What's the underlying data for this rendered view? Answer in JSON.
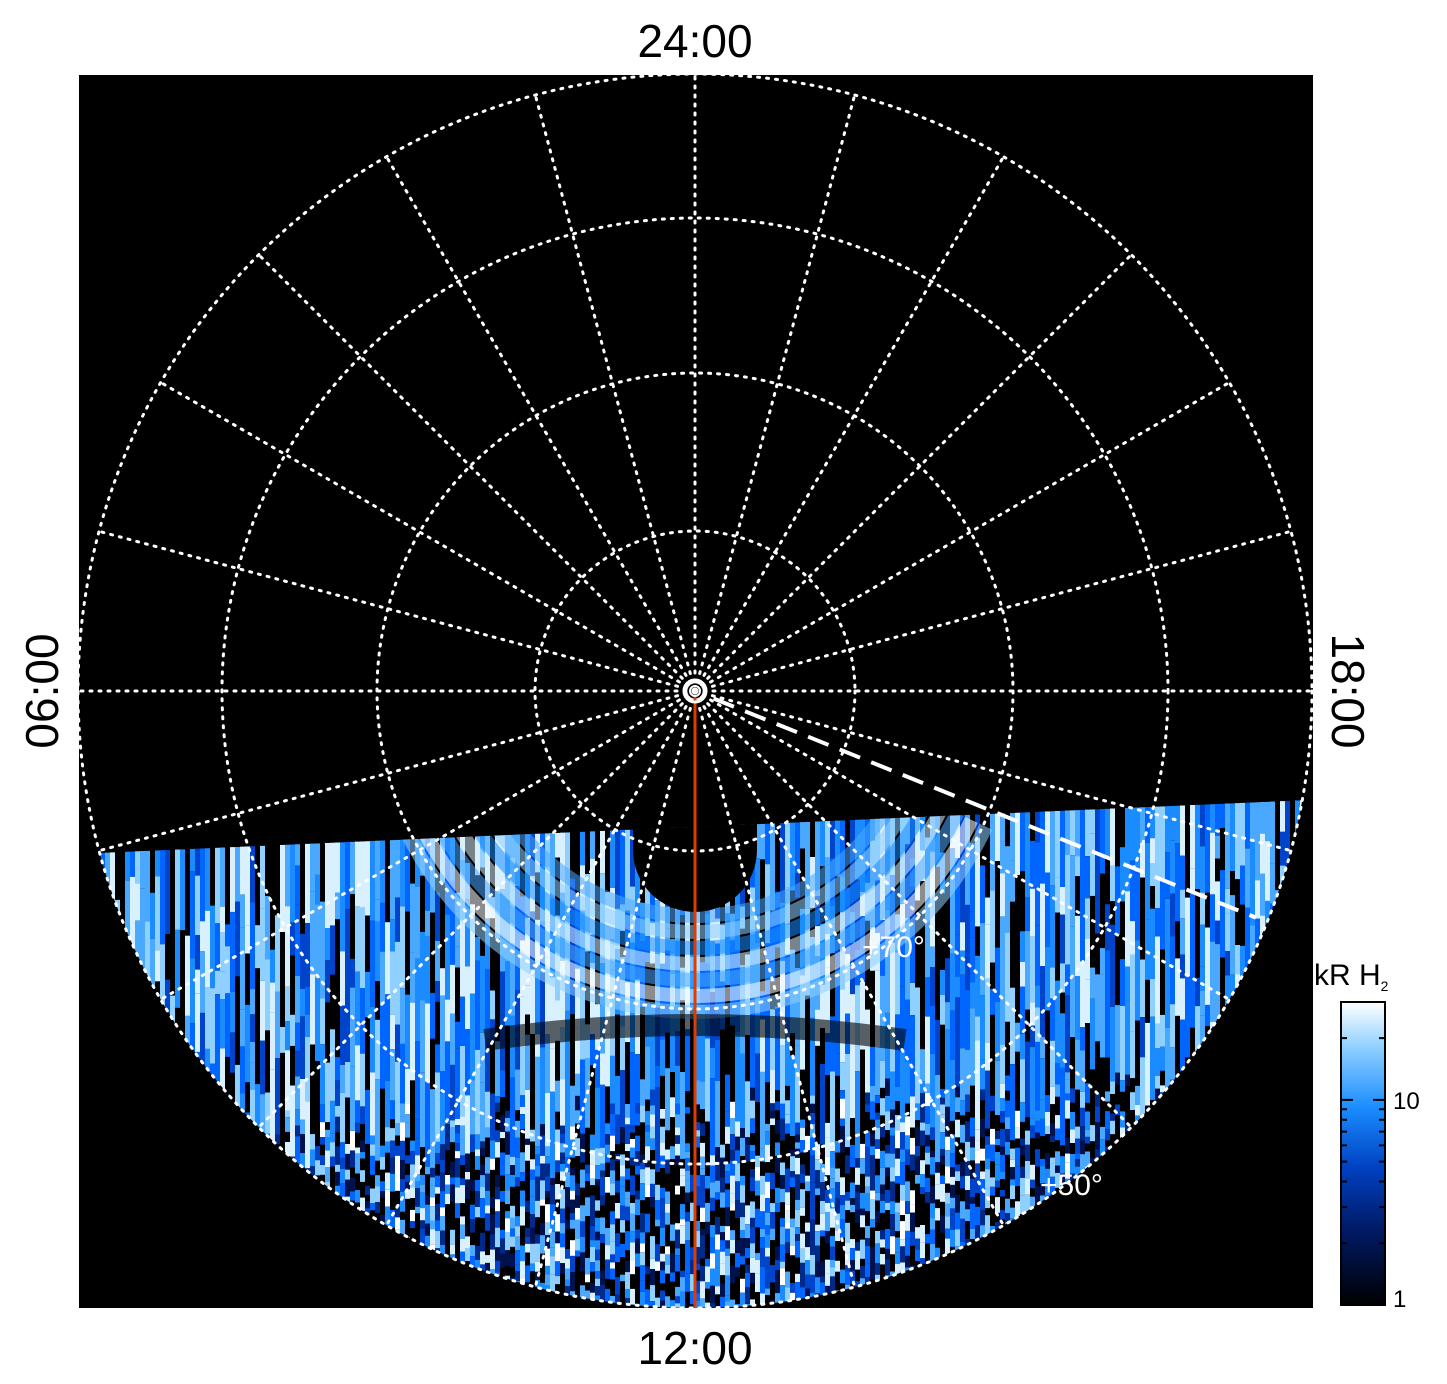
{
  "chart_data": {
    "type": "heatmap",
    "projection": "polar",
    "local_time_labels": {
      "top": "24:00",
      "bottom": "12:00",
      "left": "06:00",
      "right": "18:00"
    },
    "latitude_grid": [
      90,
      80,
      70,
      60,
      50
    ],
    "latitude_labels": [
      {
        "text": "+70°",
        "lat": 70
      },
      {
        "text": "+50°",
        "lat": 50
      }
    ],
    "meridian_step_hours": 1,
    "grid": true,
    "colorbar": {
      "title": "kR H",
      "title_subscript": "2",
      "scale": "log",
      "range": [
        1,
        30
      ],
      "tick_labels": [
        "1",
        "10"
      ],
      "tick_values": [
        1,
        10
      ],
      "placement": "right"
    },
    "colors": {
      "background": "#000000",
      "grid": "#ffffff",
      "meridian_marker": "#e03c00",
      "dashed_line": "#ffffff"
    }
  }
}
